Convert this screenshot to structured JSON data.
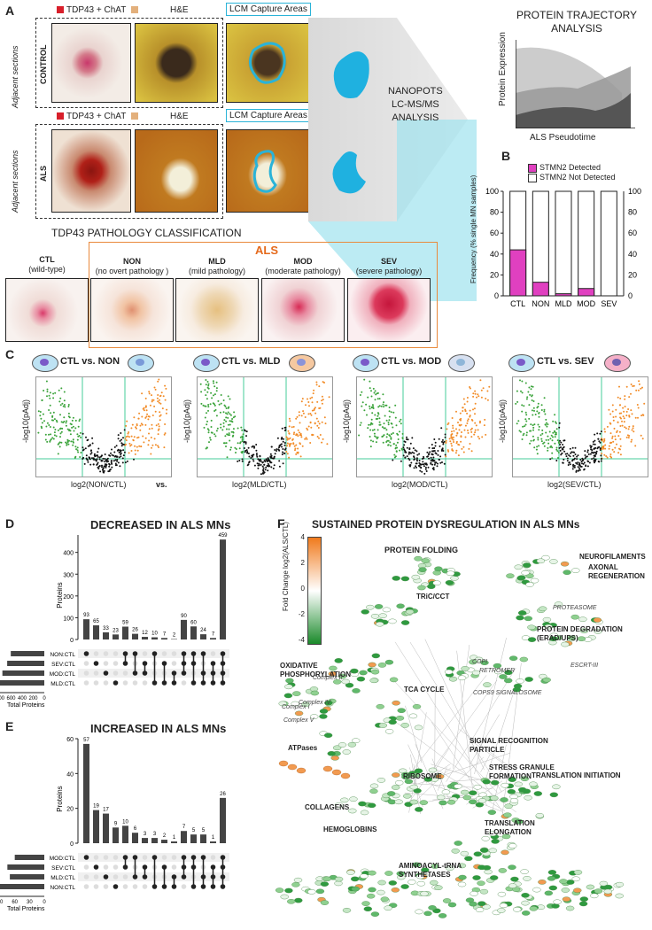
{
  "panels": {
    "a": "A",
    "b": "B",
    "c": "C",
    "d": "D",
    "e": "E",
    "f": "F"
  },
  "panelA": {
    "legend_stain": "TDP43 + ChAT",
    "he_label": "H&E",
    "lcm_label": "LCM Capture Areas",
    "row1_label": "CONTROL",
    "row2_label": "ALS",
    "adjacent": "Adjacent sections",
    "nanopots": [
      "NANOPOTS",
      "LC-MS/MS",
      "ANALYSIS"
    ],
    "trajectory_title": [
      "PROTEIN TRAJECTORY",
      "ANALYSIS"
    ],
    "traj_ylabel": "Protein Expression",
    "traj_xlabel": "ALS Pseudotime",
    "classification_title": "TDP43 PATHOLOGY CLASSIFICATION",
    "als_label": "ALS",
    "classes": [
      {
        "code": "CTL",
        "desc": "(wild-type)"
      },
      {
        "code": "NON",
        "desc": "(no overt pathology )"
      },
      {
        "code": "MLD",
        "desc": "(mild pathology)"
      },
      {
        "code": "MOD",
        "desc": "(moderate pathology)"
      },
      {
        "code": "SEV",
        "desc": "(severe pathology)"
      }
    ]
  },
  "chart_data": [
    {
      "id": "panelB",
      "type": "bar",
      "stacked": true,
      "categories": [
        "CTL",
        "NON",
        "MLD",
        "MOD",
        "SEV"
      ],
      "series": [
        {
          "name": "STMN2 Detected",
          "color": "#e040c0",
          "values": [
            44,
            13,
            2,
            7,
            0
          ]
        },
        {
          "name": "STMN2 Not Detected",
          "color": "#ffffff",
          "values": [
            56,
            87,
            98,
            93,
            100
          ]
        }
      ],
      "ylabel": "Frequency (% single MN samples)",
      "ylim": [
        0,
        100
      ],
      "yticks": [
        0,
        20,
        40,
        60,
        80,
        100
      ]
    },
    {
      "id": "panelD",
      "type": "bar",
      "title": "DECREASED IN ALS MNs",
      "ylabel": "Proteins",
      "values": [
        93,
        65,
        33,
        23,
        59,
        26,
        12,
        10,
        7,
        2,
        90,
        60,
        24,
        7,
        459
      ],
      "totals_label": "Total Proteins",
      "totals_ticks": [
        "800",
        "600",
        "400",
        "200",
        "0"
      ],
      "sets": [
        "NON:CTL",
        "SEV:CTL",
        "MOD:CTL",
        "MLD:CTL"
      ],
      "set_totals": [
        560,
        620,
        700,
        740
      ]
    },
    {
      "id": "panelE",
      "type": "bar",
      "title": "INCREASED IN ALS MNs",
      "ylabel": "Proteins",
      "values": [
        57,
        19,
        17,
        9,
        10,
        6,
        3,
        3,
        2,
        1,
        7,
        5,
        5,
        1,
        26
      ],
      "totals_label": "Total Proteins",
      "totals_ticks": [
        "90",
        "60",
        "30",
        "0"
      ],
      "sets": [
        "MOD:CTL",
        "SEV:CTL",
        "MLD:CTL",
        "NON:CTL"
      ],
      "set_totals": [
        60,
        75,
        70,
        90
      ],
      "yticks": [
        0,
        20,
        40,
        60
      ]
    }
  ],
  "panelC": {
    "comparisons": [
      {
        "title": "CTL vs. NON",
        "xlabel": "log2(NON/CTL)"
      },
      {
        "title": "CTL vs. MLD",
        "xlabel": "log2(MLD/CTL)"
      },
      {
        "title": "CTL vs. MOD",
        "xlabel": "log2(MOD/CTL)"
      },
      {
        "title": "CTL vs. SEV",
        "xlabel": "log2(SEV/CTL)"
      }
    ],
    "vs": "vs.",
    "ylabel": "-log10(pAdj)"
  },
  "panelB_legend": [
    "STMN2 Detected",
    "STMN2 Not Detected"
  ],
  "panelF": {
    "title": "SUSTAINED PROTEIN DYSREGULATION IN ALS MNs",
    "scale_label": "Fold Change log2(ALS/CTL)",
    "scale_ticks": [
      "4",
      "2",
      "0",
      "-2",
      "-4"
    ],
    "labels": [
      "PROTEIN FOLDING",
      "TRiC/CCT",
      "NEUROFILAMENTS",
      "AXONAL REGENERATION",
      "PROTEASOME",
      "PROTEIN DEGRADATION (ERAD/UPS)",
      "OXIDATIVE PHOSPHORYLATION",
      "Complex II",
      "TCA CYCLE",
      "COPI",
      "RETROMER",
      "ESCRT-III",
      "COPS9 SIGNALOSOME",
      "Complex I",
      "Complex IV",
      "Complex V",
      "ATPases",
      "SIGNAL RECOGNITION PARTICLE",
      "STRESS GRANULE FORMATION",
      "RIBOSOME",
      "COLLAGENS",
      "TRANSLATION INITIATION",
      "HEMOGLOBINS",
      "TRANSLATION ELONGATION",
      "AMINOACYL-tRNA SYNTHETASES"
    ]
  }
}
